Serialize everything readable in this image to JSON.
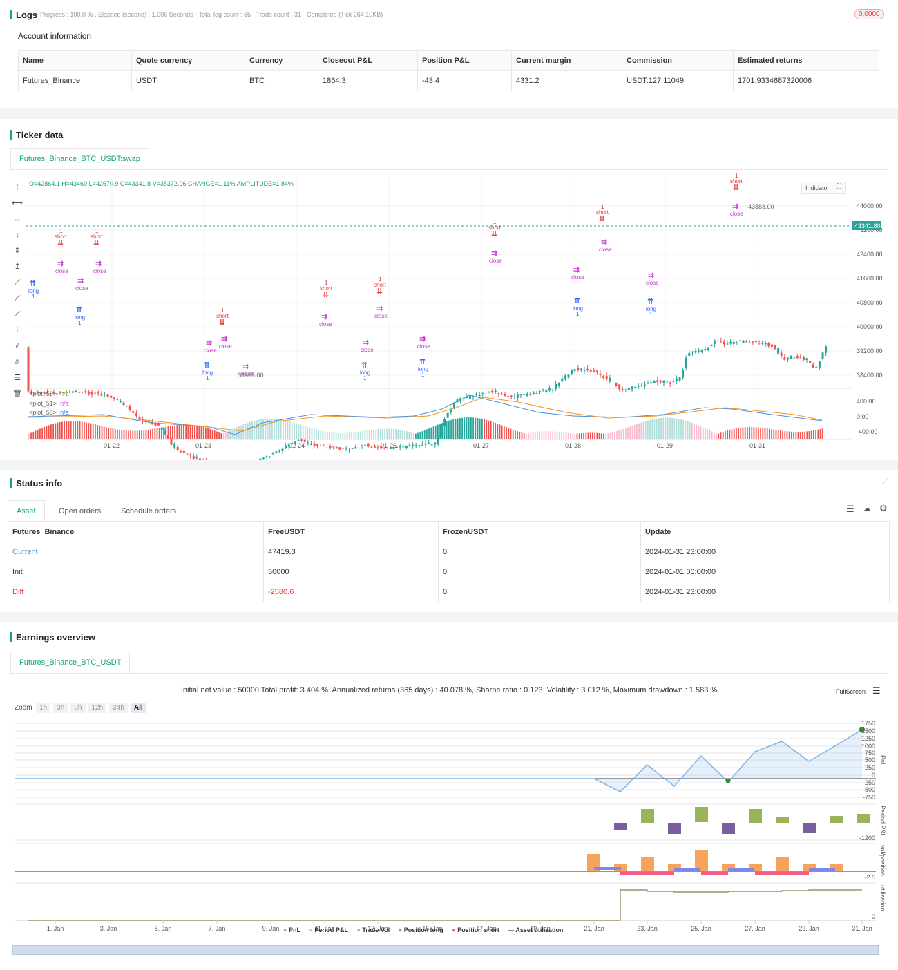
{
  "logs": {
    "title": "Logs",
    "progress": "Progress : 100.0 % , Elapsed (second) : 1.006 Seconds - Total log count : 65 - Trade count : 31 - Completed (Tick 264.10KB)",
    "badge": "0.0000"
  },
  "account": {
    "title": "Account information",
    "headers": [
      "Name",
      "Quote currency",
      "Currency",
      "Closeout P&L",
      "Position P&L",
      "Current margin",
      "Commission",
      "Estimated returns"
    ],
    "row": [
      "Futures_Binance",
      "USDT",
      "BTC",
      "1864.3",
      "-43.4",
      "4331.2",
      "USDT:127.11049",
      "1701.9334687320006"
    ]
  },
  "ticker": {
    "title": "Ticker data",
    "tab": "Futures_Binance_BTC_USDT:swap",
    "ohlc": "O=42864.1 H=43460 L=42670.9 C=43341.8 V=35372.96 CHANGE=1.11% AMPLITUDE=1.84%",
    "indicator_btn": "Indicator",
    "last_price": "43341.80",
    "high_label": "43888.00",
    "low_label": "38555.00",
    "price_ticks": [
      "44000.00",
      "43200.00",
      "42400.00",
      "41600.00",
      "40800.00",
      "40000.00",
      "39200.00",
      "38400.00"
    ],
    "osc_ticks": [
      "400.00",
      "0.00",
      "-400.00"
    ],
    "dates": [
      "01-22",
      "01-23",
      "01-24",
      "01-26",
      "01-27",
      "01-28",
      "01-29",
      "01-31"
    ],
    "legend": [
      {
        "name": "<plot_50>",
        "val": "n/a",
        "color": "#f7931a"
      },
      {
        "name": "<plot_51>",
        "val": "n/a",
        "color": "#e040fb"
      },
      {
        "name": "<plot_58>",
        "val": "n/a",
        "color": "#2962ff"
      }
    ],
    "signals": {
      "long": "long",
      "short": "short",
      "close": "close",
      "one": "1"
    },
    "green": "#26a69a",
    "red": "#ef5350"
  },
  "status": {
    "title": "Status info",
    "tabs": [
      "Asset",
      "Open orders",
      "Schedule orders"
    ],
    "headers": [
      "Futures_Binance",
      "FreeUSDT",
      "FrozenUSDT",
      "Update"
    ],
    "rows": [
      [
        "Current",
        "47419.3",
        "0",
        "2024-01-31 23:00:00"
      ],
      [
        "Init",
        "50000",
        "0",
        "2024-01-01 00:00:00"
      ],
      [
        "Diff",
        "-2580.6",
        "0",
        "2024-01-31 23:00:00"
      ]
    ]
  },
  "earnings": {
    "title": "Earnings overview",
    "tab": "Futures_Binance_BTC_USDT",
    "summary": "Initial net value : 50000 Total profit: 3.404 %, Annualized returns (365 days) : 40.078 %, Sharpe ratio : 0.123, Volatility : 3.012 %, Maximum drawdown : 1.583 %",
    "fullscreen": "FullScreen",
    "zoom_label": "Zoom",
    "zoom": [
      "1h",
      "3h",
      "8h",
      "12h",
      "24h",
      "All"
    ],
    "pnl_ticks": [
      "1750",
      "1500",
      "1250",
      "1000",
      "750",
      "500",
      "250",
      "0",
      "-250",
      "-500",
      "-750"
    ],
    "pnl_axis": "PnL",
    "period_axis": "Period P&L",
    "period_tick": "-1200",
    "vol_axis": "vol/position",
    "vol_tick": "-2.5",
    "util_axis": "utilization",
    "util_tick": "0",
    "dates": [
      "1. Jan",
      "3. Jan",
      "5. Jan",
      "7. Jan",
      "9. Jan",
      "11. Jan",
      "13. Jan",
      "15. Jan",
      "17. Jan",
      "19. Jan",
      "21. Jan",
      "23. Jan",
      "25. Jan",
      "27. Jan",
      "29. Jan",
      "31. Jan"
    ],
    "legend": [
      {
        "name": "PnL",
        "color": "#7cb5ec"
      },
      {
        "name": "Period P&L",
        "color": "#90ed7d"
      },
      {
        "name": "Trade Vol",
        "color": "#f7a35c"
      },
      {
        "name": "Position long",
        "color": "#8085e9"
      },
      {
        "name": "Position short",
        "color": "#f15c80"
      },
      {
        "name": "Asset utilization",
        "color": "#8d7b4a"
      }
    ]
  }
}
